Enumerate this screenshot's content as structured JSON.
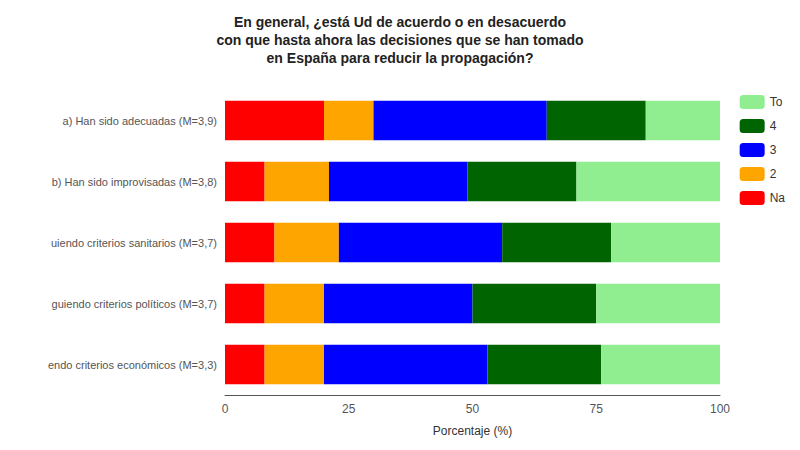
{
  "chart_data": {
    "type": "bar",
    "orientation": "horizontal",
    "stacked": true,
    "title": "En general, ¿está Ud de acuerdo o en desacuerdo\ncon que hasta ahora las decisiones que se han tomado\nen España para reducir la propagación?",
    "xlabel": "Porcentaje (%)",
    "categories": [
      "a) Han sido adecuadas (M=3,9)",
      "b) Han sido improvisadas (M=3,8)",
      "uiendo criterios sanitarios (M=3,7)",
      "guiendo criterios políticos (M=3,7)",
      "endo criterios económicos (M=3,3)"
    ],
    "series": [
      {
        "name": "Na",
        "color": "#ff0000",
        "values": [
          20,
          8,
          10,
          8,
          8
        ]
      },
      {
        "name": "2",
        "color": "#ffa500",
        "values": [
          10,
          13,
          13,
          12,
          12
        ]
      },
      {
        "name": "3",
        "color": "#0000ff",
        "values": [
          35,
          28,
          33,
          30,
          33
        ]
      },
      {
        "name": "4",
        "color": "#006400",
        "values": [
          20,
          22,
          22,
          25,
          23
        ]
      },
      {
        "name": "To",
        "color": "#90ee90",
        "values": [
          15,
          29,
          22,
          25,
          24
        ]
      }
    ],
    "xlim": [
      0,
      100
    ],
    "xticks": [
      0,
      25,
      50,
      75,
      100
    ],
    "grid": false,
    "legend": "right"
  }
}
